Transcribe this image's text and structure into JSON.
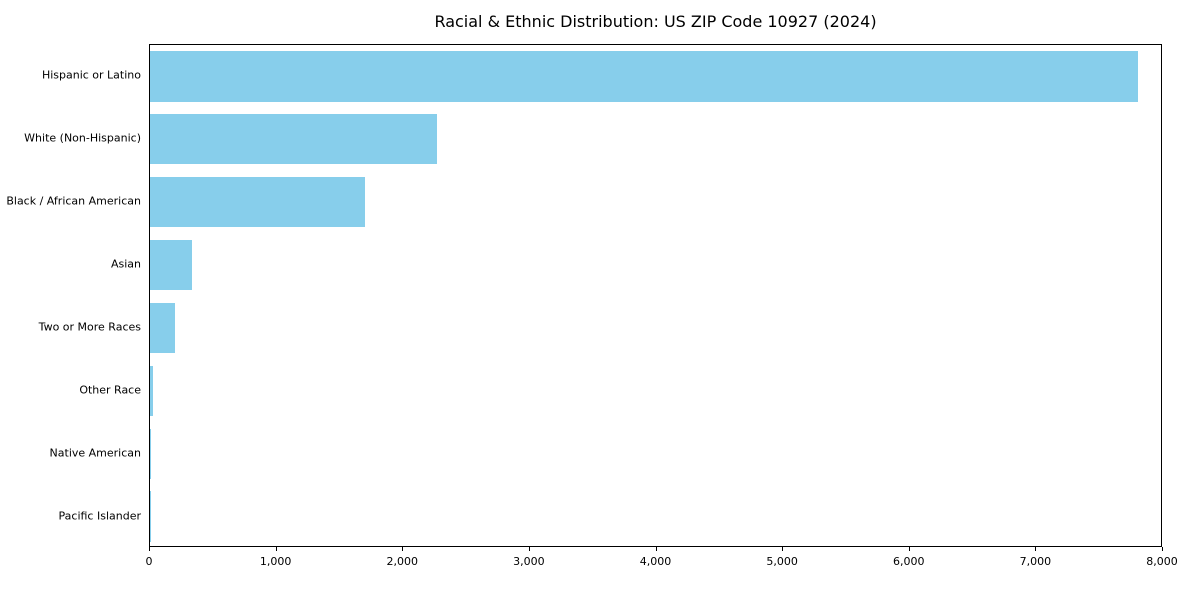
{
  "chart_data": {
    "type": "bar",
    "orientation": "horizontal",
    "title": "Racial & Ethnic Distribution: US ZIP Code 10927 (2024)",
    "categories": [
      "Hispanic or Latino",
      "White (Non-Hispanic)",
      "Black / African American",
      "Asian",
      "Two or More Races",
      "Other Race",
      "Native American",
      "Pacific Islander"
    ],
    "values": [
      7800,
      2270,
      1700,
      330,
      200,
      20,
      5,
      2
    ],
    "xlabel": "",
    "ylabel": "",
    "xlim": [
      0,
      8000
    ],
    "xticks": [
      0,
      1000,
      2000,
      3000,
      4000,
      5000,
      6000,
      7000,
      8000
    ],
    "grid": false,
    "legend": "none",
    "bar_color": "#87CEEB",
    "text_color": "#000000"
  }
}
